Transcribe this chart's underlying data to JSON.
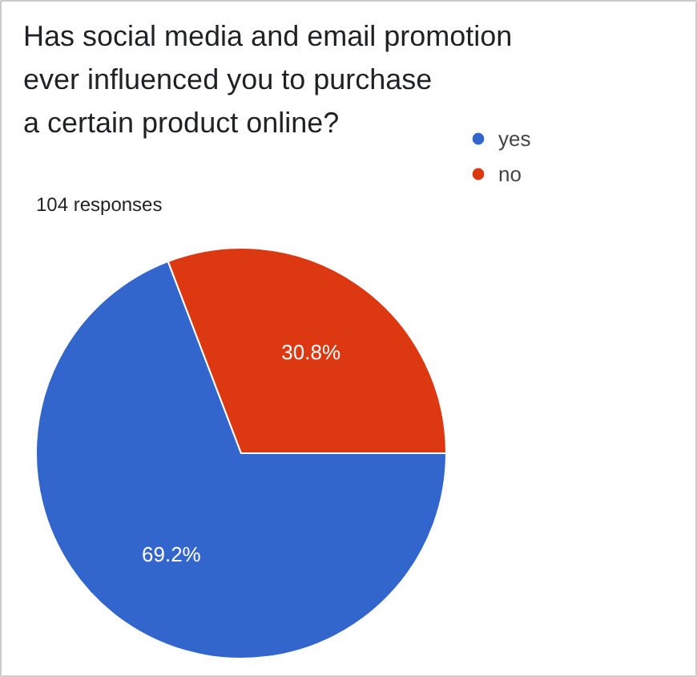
{
  "chart_data": {
    "type": "pie",
    "title": "Has social media and email promotion\never influenced you to purchase\na certain product  online?",
    "subtitle": "104 responses",
    "categories": [
      "yes",
      "no"
    ],
    "values": [
      69.2,
      30.8
    ],
    "colors": [
      "#3366cc",
      "#dc3912"
    ],
    "value_labels": [
      "69.2%",
      "30.8%"
    ],
    "legend": "top right"
  }
}
